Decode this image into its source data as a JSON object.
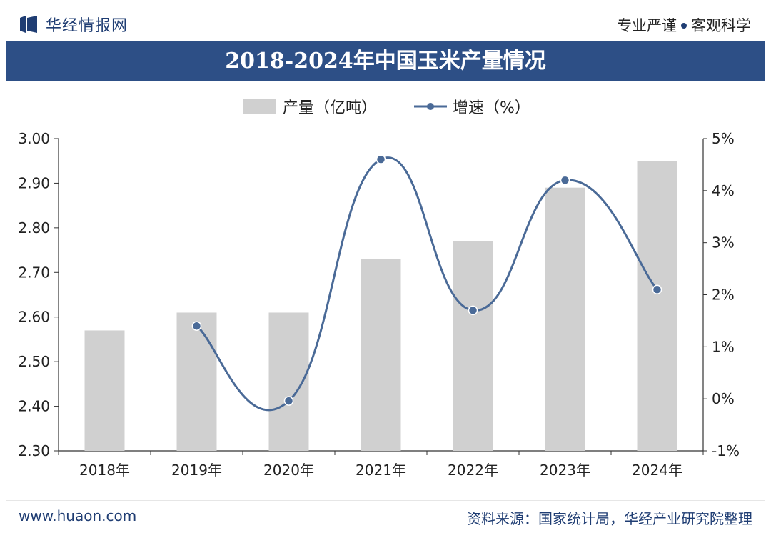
{
  "header": {
    "brand": "华经情报网",
    "tagline_left": "专业严谨",
    "tagline_right": "客观科学"
  },
  "colors": {
    "title_bg": "#2d4f86",
    "bar": "#d0d0d0",
    "line": "#4a6a97",
    "brand": "#1f3d73"
  },
  "chart_data": {
    "type": "bar",
    "title": "2018-2024年中国玉米产量情况",
    "categories": [
      "2018年",
      "2019年",
      "2020年",
      "2021年",
      "2022年",
      "2023年",
      "2024年"
    ],
    "series": [
      {
        "name": "产量（亿吨）",
        "type": "bar",
        "axis": "left",
        "values": [
          2.57,
          2.61,
          2.61,
          2.73,
          2.77,
          2.89,
          2.95
        ]
      },
      {
        "name": "增速（%）",
        "type": "line",
        "axis": "right",
        "values": [
          null,
          1.4,
          -0.04,
          4.6,
          1.7,
          4.2,
          2.1
        ]
      }
    ],
    "y_left": {
      "min": 2.3,
      "max": 3.0,
      "ticks": [
        "2.30",
        "2.40",
        "2.50",
        "2.60",
        "2.70",
        "2.80",
        "2.90",
        "3.00"
      ]
    },
    "y_right": {
      "min": -1,
      "max": 5,
      "ticks": [
        "-1%",
        "0%",
        "1%",
        "2%",
        "3%",
        "4%",
        "5%"
      ]
    },
    "legend_position": "top-center",
    "grid": false
  },
  "footer": {
    "website": "www.huaon.com",
    "source": "资料来源：国家统计局，华经产业研究院整理"
  }
}
